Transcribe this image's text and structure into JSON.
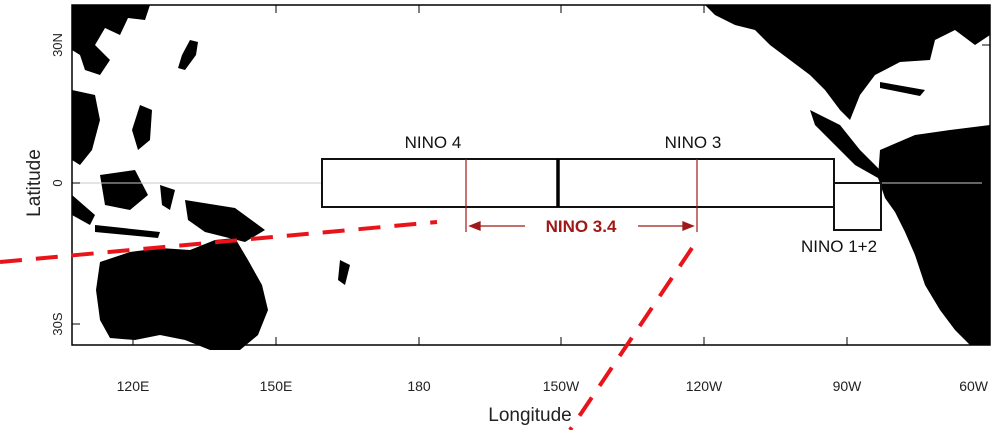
{
  "axes": {
    "ylabel": "Latitude",
    "xlabel": "Longitude",
    "y_ticks": [
      "30N",
      "0",
      "30S"
    ],
    "x_ticks": [
      "120E",
      "150E",
      "180",
      "150W",
      "120W",
      "90W",
      "60W"
    ]
  },
  "regions": {
    "nino4": "NINO 4",
    "nino3": "NINO 3",
    "nino34": "NINO 3.4",
    "nino12": "NINO 1+2"
  },
  "colors": {
    "land": "#000000",
    "ocean": "#ffffff",
    "box_outline": "#111111",
    "nino34_accent": "#a01818",
    "red_dash": "#e8141a",
    "equator": "#c8c8c8"
  }
}
